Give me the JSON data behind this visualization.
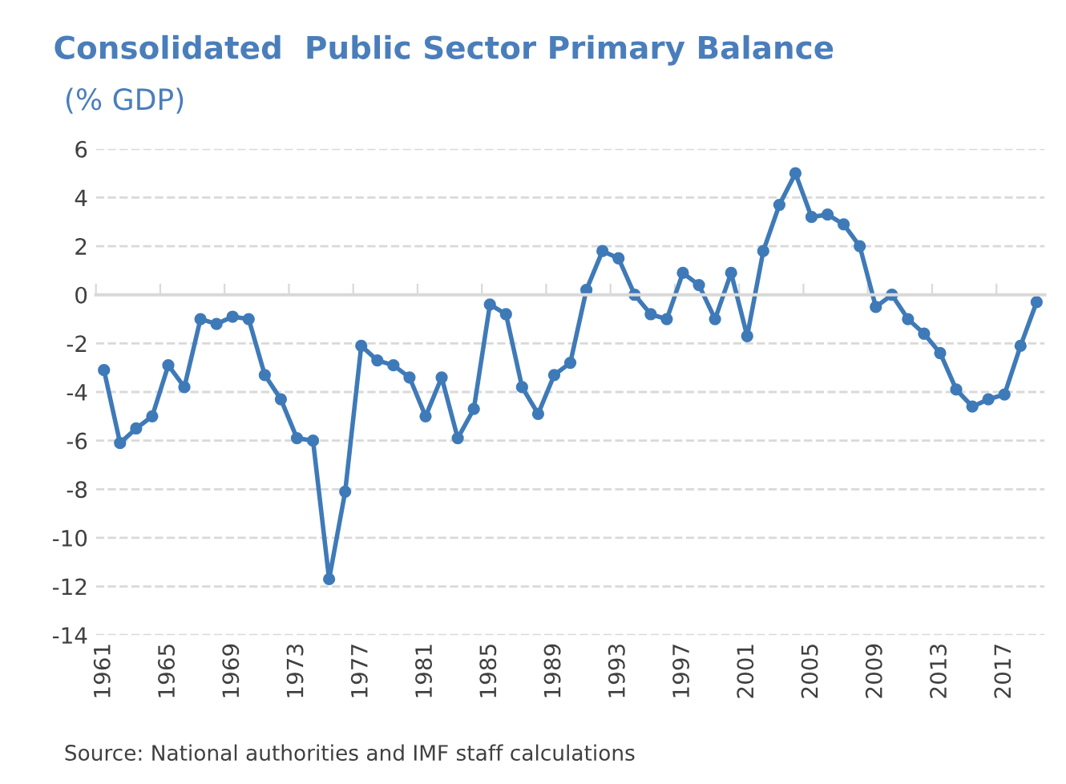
{
  "chart_data": {
    "type": "line",
    "title": "Consolidated  Public Sector Primary Balance",
    "subtitle": "(% GDP)",
    "categories": [
      "1961",
      null,
      null,
      null,
      "1965",
      null,
      null,
      null,
      "1969",
      null,
      null,
      null,
      "1973",
      null,
      null,
      null,
      "1977",
      null,
      null,
      null,
      "1981",
      null,
      null,
      null,
      "1985",
      null,
      null,
      null,
      "1989",
      null,
      null,
      null,
      "1993",
      null,
      null,
      null,
      "1997",
      null,
      null,
      null,
      "2001",
      null,
      null,
      null,
      "2005",
      null,
      null,
      null,
      "2009",
      null,
      null,
      null,
      "2013",
      null,
      null,
      null,
      "2017",
      null,
      null
    ],
    "series": [
      {
        "color": "#3f7ab8",
        "values": [
          -3.1,
          -6.1,
          -5.5,
          -5.0,
          -2.9,
          -3.8,
          -1.0,
          -1.2,
          -0.9,
          -1.0,
          -3.3,
          -4.3,
          -5.9,
          -6.0,
          -11.7,
          -8.1,
          -2.1,
          -2.7,
          -2.9,
          -3.4,
          -5.0,
          -3.4,
          -5.9,
          -4.7,
          -0.4,
          -0.8,
          -3.8,
          -4.9,
          -3.3,
          -2.8,
          0.2,
          1.8,
          1.5,
          0.0,
          -0.8,
          -1.0,
          0.9,
          0.4,
          -1.0,
          0.9,
          -1.7,
          1.8,
          3.7,
          5.0,
          3.2,
          3.3,
          2.9,
          2.0,
          -0.5,
          0.0,
          -1.0,
          -1.6,
          -2.4,
          -3.9,
          -4.6,
          -4.3,
          -4.1,
          -2.1,
          -0.3
        ]
      }
    ],
    "ylim": [
      -14,
      6
    ],
    "yticks": [
      -14,
      -12,
      -10,
      -8,
      -6,
      -4,
      -2,
      0,
      2,
      4,
      6
    ],
    "grid": "y",
    "marker": "circle",
    "line_style": "solid",
    "annotations": [
      "Source: National authorities and IMF staff calculations"
    ]
  }
}
